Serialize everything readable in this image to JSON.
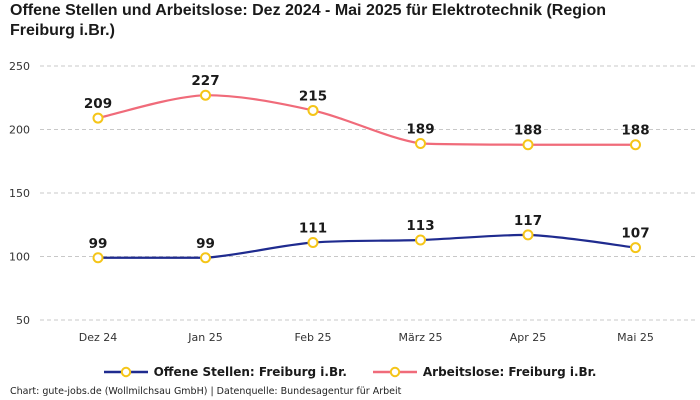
{
  "chart_data": {
    "type": "line",
    "title": "Offene Stellen und Arbeitslose: Dez 2024 - Mai 2025 für Elektrotechnik (Region Freiburg i.Br.)",
    "categories": [
      "Dez 24",
      "Jan 25",
      "Feb 25",
      "März 25",
      "Apr 25",
      "Mai 25"
    ],
    "series": [
      {
        "name": "Offene Stellen: Freiburg i.Br.",
        "color": "#1f2b8f",
        "values": [
          99,
          99,
          111,
          113,
          117,
          107
        ]
      },
      {
        "name": "Arbeitslose: Freiburg i.Br.",
        "color": "#f06b7a",
        "values": [
          209,
          227,
          215,
          189,
          188,
          188
        ]
      }
    ],
    "y_ticks": [
      50,
      100,
      150,
      200,
      250
    ],
    "ylim": [
      50,
      250
    ],
    "grid": true,
    "legend_position": "bottom",
    "marker_color": "#f5c518",
    "source": "Chart: gute-jobs.de (Wollmilchsau GmbH) | Datenquelle: Bundesagentur für Arbeit"
  }
}
